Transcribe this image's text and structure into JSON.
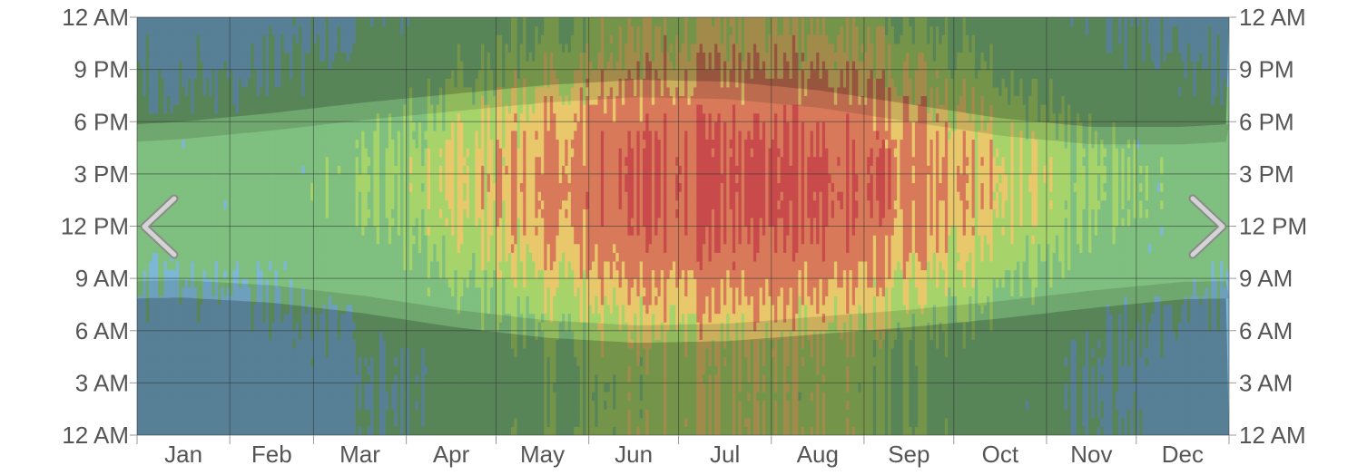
{
  "chart_data": {
    "type": "heatmap",
    "title": "",
    "xlabel": "",
    "ylabel": "",
    "x_tick_labels": [
      "Jan",
      "Feb",
      "Mar",
      "Apr",
      "May",
      "Jun",
      "Jul",
      "Aug",
      "Sep",
      "Oct",
      "Nov",
      "Dec"
    ],
    "y_tick_labels": [
      "12 AM",
      "3 AM",
      "6 AM",
      "9 AM",
      "12 PM",
      "3 PM",
      "6 PM",
      "9 PM",
      "12 AM"
    ],
    "y_range_hours": [
      0,
      24
    ],
    "x_range_days": [
      0,
      365
    ],
    "grid": true,
    "color_bands": [
      {
        "name": "cold",
        "color": "#7db7d6"
      },
      {
        "name": "cool",
        "color": "#7fbf7f"
      },
      {
        "name": "comfortable",
        "color": "#a6d46a"
      },
      {
        "name": "warm",
        "color": "#e8c86a"
      },
      {
        "name": "hot",
        "color": "#d87a5a"
      },
      {
        "name": "sweltering",
        "color": "#c84a4a"
      }
    ],
    "daylight": {
      "sunrise_hours": [
        {
          "month": "Jan",
          "hour": 7.9
        },
        {
          "month": "Feb",
          "hour": 7.6
        },
        {
          "month": "Mar",
          "hour": 7.0
        },
        {
          "month": "Apr",
          "hour": 6.2
        },
        {
          "month": "May",
          "hour": 5.6
        },
        {
          "month": "Jun",
          "hour": 5.3
        },
        {
          "month": "Jul",
          "hour": 5.4
        },
        {
          "month": "Aug",
          "hour": 5.8
        },
        {
          "month": "Sep",
          "hour": 6.2
        },
        {
          "month": "Oct",
          "hour": 6.7
        },
        {
          "month": "Nov",
          "hour": 7.3
        },
        {
          "month": "Dec",
          "hour": 7.8
        }
      ],
      "sunset_hours": [
        {
          "month": "Jan",
          "hour": 18.0
        },
        {
          "month": "Feb",
          "hour": 18.5
        },
        {
          "month": "Mar",
          "hour": 19.1
        },
        {
          "month": "Apr",
          "hour": 19.6
        },
        {
          "month": "May",
          "hour": 20.1
        },
        {
          "month": "Jun",
          "hour": 20.4
        },
        {
          "month": "Jul",
          "hour": 20.3
        },
        {
          "month": "Aug",
          "hour": 19.8
        },
        {
          "month": "Sep",
          "hour": 19.0
        },
        {
          "month": "Oct",
          "hour": 18.2
        },
        {
          "month": "Nov",
          "hour": 17.7
        },
        {
          "month": "Dec",
          "hour": 17.7
        }
      ]
    }
  },
  "ui": {
    "prev_icon": "chevron-left-icon",
    "next_icon": "chevron-right-icon",
    "arrow_color": "#cccccc",
    "grid_color": "#333333",
    "night_overlay_color": "#000000"
  }
}
